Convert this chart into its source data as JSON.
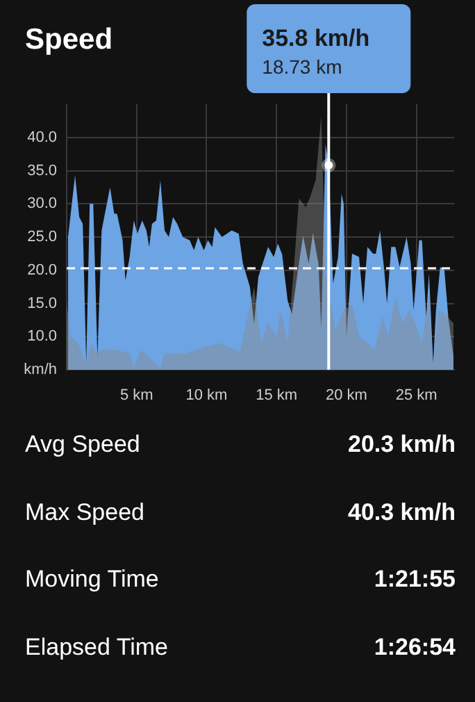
{
  "chart_data": {
    "type": "area",
    "title": "Speed",
    "xlim": [
      0,
      27.7
    ],
    "xticks": [
      {
        "value": 5,
        "label": "5 km"
      },
      {
        "value": 10,
        "label": "10 km"
      },
      {
        "value": 15,
        "label": "15 km"
      },
      {
        "value": 20,
        "label": "20 km"
      },
      {
        "value": 25,
        "label": "25 km"
      }
    ],
    "ylim": [
      5,
      45
    ],
    "yticks": [
      {
        "value": 5,
        "label": "km/h"
      },
      {
        "value": 10,
        "label": "10.0"
      },
      {
        "value": 15,
        "label": "15.0"
      },
      {
        "value": 20,
        "label": "20.0"
      },
      {
        "value": 25,
        "label": "25.0"
      },
      {
        "value": 30,
        "label": "30.0"
      },
      {
        "value": 35,
        "label": "35.0"
      },
      {
        "value": 40,
        "label": "40.0"
      }
    ],
    "grid": true,
    "series": [
      {
        "color": "#6ca4e4",
        "x": [
          0.1,
          0.6,
          0.9,
          1.15,
          1.4,
          1.65,
          1.9,
          2.2,
          2.5,
          3.1,
          3.4,
          3.6,
          4.0,
          4.2,
          4.5,
          4.8,
          5.05,
          5.4,
          5.7,
          5.9,
          6.1,
          6.4,
          6.7,
          7.0,
          7.3,
          7.6,
          7.9,
          8.3,
          8.8,
          9.1,
          9.4,
          9.8,
          10.1,
          10.4,
          10.6,
          11.1,
          11.8,
          12.3,
          12.6,
          13.1,
          13.4,
          13.7,
          14.4,
          14.8,
          15.1,
          15.4,
          15.8,
          16.1,
          16.6,
          16.9,
          17.3,
          17.6,
          18.0,
          18.2,
          18.5,
          18.73,
          19.05,
          19.4,
          19.65,
          19.8,
          20.0,
          20.4,
          20.9,
          21.2,
          21.5,
          21.9,
          22.1,
          22.4,
          22.7,
          22.9,
          23.2,
          23.5,
          23.8,
          24.3,
          24.6,
          24.8,
          25.2,
          25.4,
          25.7,
          25.9,
          26.2,
          26.4,
          26.7,
          27.0,
          27.3,
          27.65
        ],
        "values": [
          25,
          34.3,
          28,
          27,
          6,
          30,
          30,
          7,
          26,
          32.5,
          28.5,
          28.5,
          24.5,
          18.5,
          22,
          27.5,
          25.5,
          27.5,
          26,
          23.5,
          27,
          27.5,
          33.5,
          26,
          25,
          28,
          27,
          25,
          24.5,
          23,
          25,
          23,
          24.5,
          23.5,
          26.5,
          25,
          26,
          25.5,
          21,
          17.5,
          12,
          19,
          23.5,
          22,
          24,
          22.4,
          15.4,
          13.4,
          21,
          25.2,
          21,
          25.6,
          21,
          11.3,
          39,
          35.8,
          18,
          22,
          31.5,
          30,
          10,
          22.5,
          22,
          15,
          23.5,
          22.5,
          22.5,
          26,
          20,
          15,
          23.5,
          23.5,
          20.5,
          25,
          21,
          14,
          24.5,
          24.5,
          13,
          19.5,
          6,
          14,
          20.5,
          20,
          12.5,
          7
        ]
      },
      {
        "color": "#8a8a8a",
        "x": [
          0,
          0.3,
          0.8,
          1.4,
          1.8,
          2.1,
          2.5,
          3.5,
          4.5,
          4.8,
          5.3,
          5.8,
          6.7,
          7.0,
          8.5,
          10,
          11,
          12.4,
          13.4,
          13.9,
          14.4,
          15.0,
          15.3,
          15.8,
          16.3,
          16.6,
          17.1,
          17.4,
          17.8,
          18.2,
          18.5,
          19.2,
          19.8,
          20.4,
          20.9,
          21.5,
          22,
          22.6,
          23.0,
          23.5,
          24.0,
          24.5,
          25.0,
          25.4,
          25.9,
          26.2,
          26.6,
          27.0,
          27.65
        ],
        "values": [
          15,
          10,
          9,
          6,
          9,
          7.5,
          8,
          8,
          7.5,
          5.3,
          8,
          7,
          5.3,
          7.5,
          7.5,
          8.5,
          9,
          7.7,
          17.5,
          9,
          12,
          10,
          14,
          9,
          22,
          30.8,
          29.5,
          31,
          33.6,
          43.3,
          20,
          11,
          14,
          14.8,
          10,
          9,
          8,
          13,
          10,
          16,
          12,
          14,
          11.5,
          9,
          16,
          6,
          14,
          13.5,
          12
        ]
      }
    ],
    "ref_lines": [
      {
        "axis": "y",
        "value": 20.3,
        "color": "#ffffff",
        "line_style": "dashed"
      },
      {
        "axis": "x",
        "value": 18.73,
        "label": "18.73 km",
        "color": "#ffffff"
      }
    ],
    "annotations": [
      "35.8 km/h",
      "Avg Speed",
      "20.3 km/h",
      "Max Speed",
      "40.3 km/h",
      "Moving Time",
      "1:21:55",
      "Elapsed Time",
      "1:26:54"
    ]
  }
}
